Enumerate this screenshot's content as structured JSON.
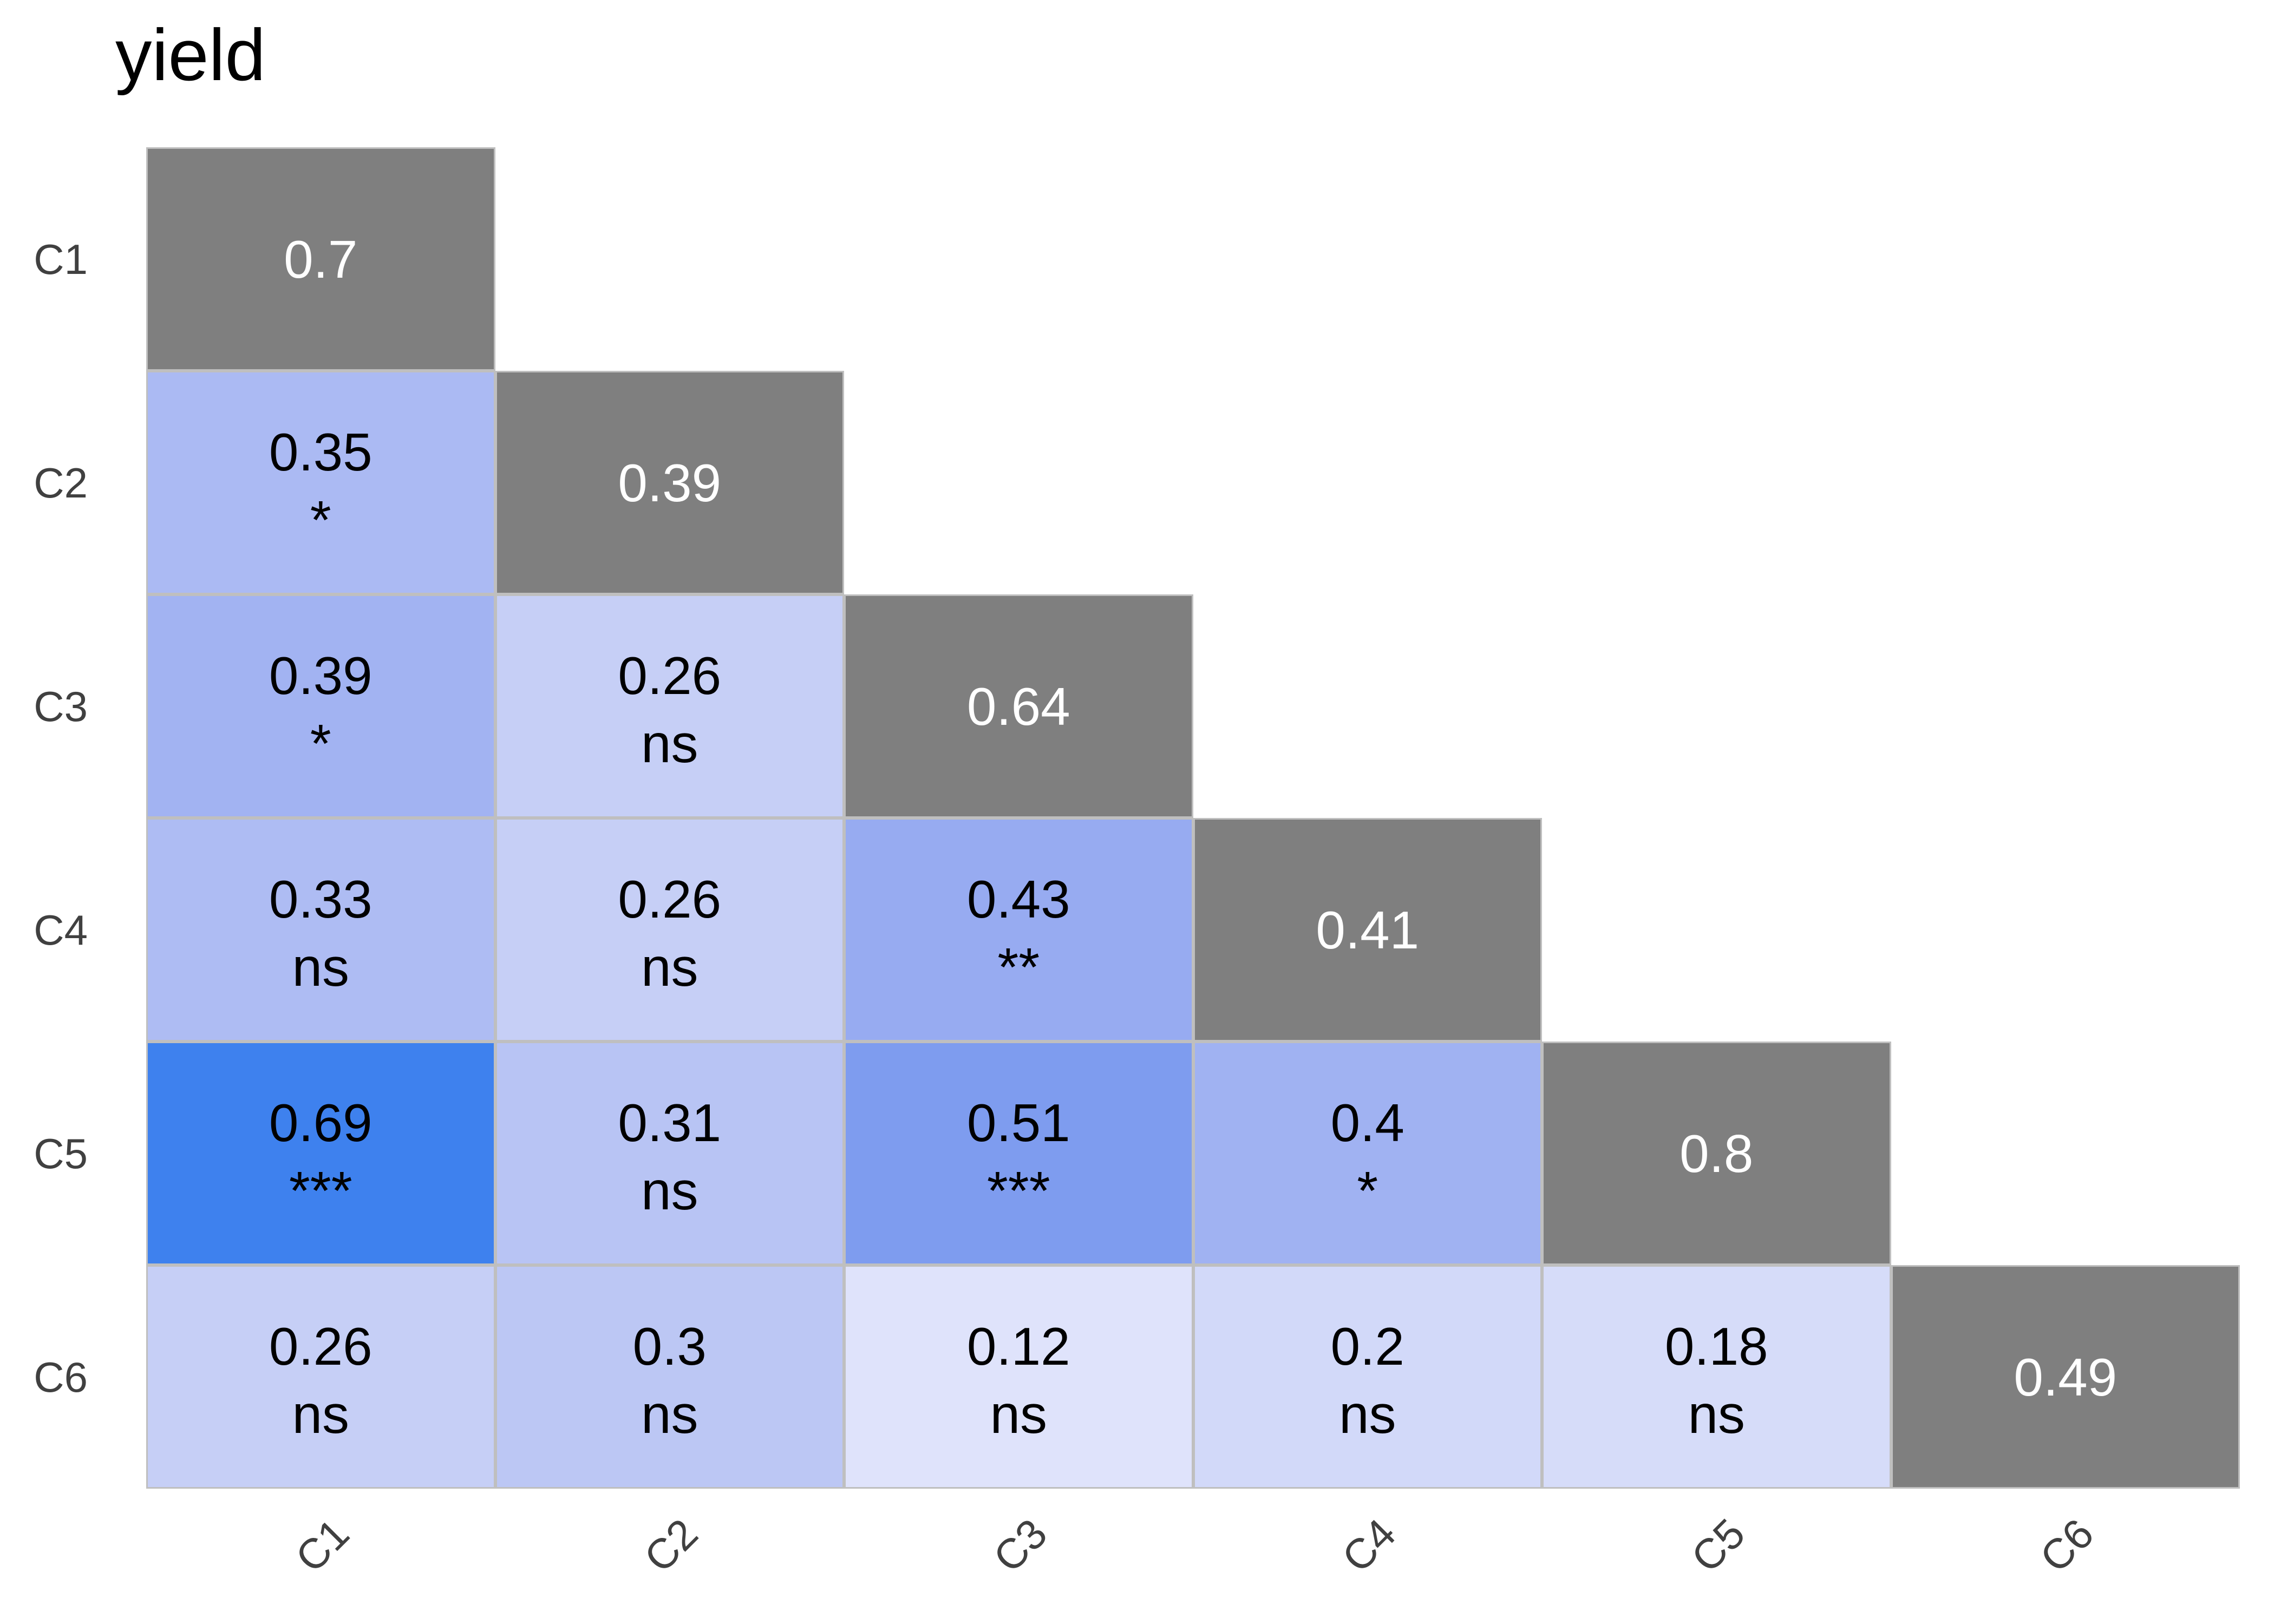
{
  "title": "yield",
  "colors": {
    "background": "#ffffff",
    "title_text": "#000000",
    "axis_text": "#404040",
    "cell_border": "#bfbfbf",
    "cell_text": "#000000",
    "diagonal_fill": "#7f7f7f",
    "diagonal_text": "#ffffff"
  },
  "axis": {
    "left_labels": [
      "C1",
      "C2",
      "C3",
      "C4",
      "C5",
      "C6"
    ],
    "bottom_labels": [
      "C1",
      "C2",
      "C3",
      "C4",
      "C5",
      "C6"
    ]
  },
  "chart_data": {
    "type": "heatmap",
    "subtype": "correlation-matrix-lower-triangle",
    "title": "yield",
    "variables": [
      "C1",
      "C2",
      "C3",
      "C4",
      "C5",
      "C6"
    ],
    "legend_position": "none",
    "grid": "off",
    "diagonal": [
      {
        "variable": "C1",
        "value": 0.7,
        "label": "0.7"
      },
      {
        "variable": "C2",
        "value": 0.39,
        "label": "0.39"
      },
      {
        "variable": "C3",
        "value": 0.64,
        "label": "0.64"
      },
      {
        "variable": "C4",
        "value": 0.41,
        "label": "0.41"
      },
      {
        "variable": "C5",
        "value": 0.8,
        "label": "0.8"
      },
      {
        "variable": "C6",
        "value": 0.49,
        "label": "0.49"
      }
    ],
    "cells": [
      {
        "row": "C2",
        "col": "C1",
        "value": 0.35,
        "label": "0.35",
        "significance": "*",
        "color": "#abbaf3"
      },
      {
        "row": "C3",
        "col": "C1",
        "value": 0.39,
        "label": "0.39",
        "significance": "*",
        "color": "#a2b3f2"
      },
      {
        "row": "C3",
        "col": "C2",
        "value": 0.26,
        "label": "0.26",
        "significance": "ns",
        "color": "#c6cff6"
      },
      {
        "row": "C4",
        "col": "C1",
        "value": 0.33,
        "label": "0.33",
        "significance": "ns",
        "color": "#aebcf3"
      },
      {
        "row": "C4",
        "col": "C2",
        "value": 0.26,
        "label": "0.26",
        "significance": "ns",
        "color": "#c6cff6"
      },
      {
        "row": "C4",
        "col": "C3",
        "value": 0.43,
        "label": "0.43",
        "significance": "**",
        "color": "#97abf1"
      },
      {
        "row": "C5",
        "col": "C1",
        "value": 0.69,
        "label": "0.69",
        "significance": "***",
        "color": "#3e81ee"
      },
      {
        "row": "C5",
        "col": "C2",
        "value": 0.31,
        "label": "0.31",
        "significance": "ns",
        "color": "#b8c4f4"
      },
      {
        "row": "C5",
        "col": "C3",
        "value": 0.51,
        "label": "0.51",
        "significance": "***",
        "color": "#7e9cef"
      },
      {
        "row": "C5",
        "col": "C4",
        "value": 0.4,
        "label": "0.4",
        "significance": "*",
        "color": "#a0b2f2"
      },
      {
        "row": "C6",
        "col": "C1",
        "value": 0.26,
        "label": "0.26",
        "significance": "ns",
        "color": "#c6cff6"
      },
      {
        "row": "C6",
        "col": "C2",
        "value": 0.3,
        "label": "0.3",
        "significance": "ns",
        "color": "#bcc7f4"
      },
      {
        "row": "C6",
        "col": "C3",
        "value": 0.12,
        "label": "0.12",
        "significance": "ns",
        "color": "#dfe3fb"
      },
      {
        "row": "C6",
        "col": "C4",
        "value": 0.2,
        "label": "0.2",
        "significance": "ns",
        "color": "#d2d9f9"
      },
      {
        "row": "C6",
        "col": "C5",
        "value": 0.18,
        "label": "0.18",
        "significance": "ns",
        "color": "#d6dcf9"
      }
    ]
  }
}
